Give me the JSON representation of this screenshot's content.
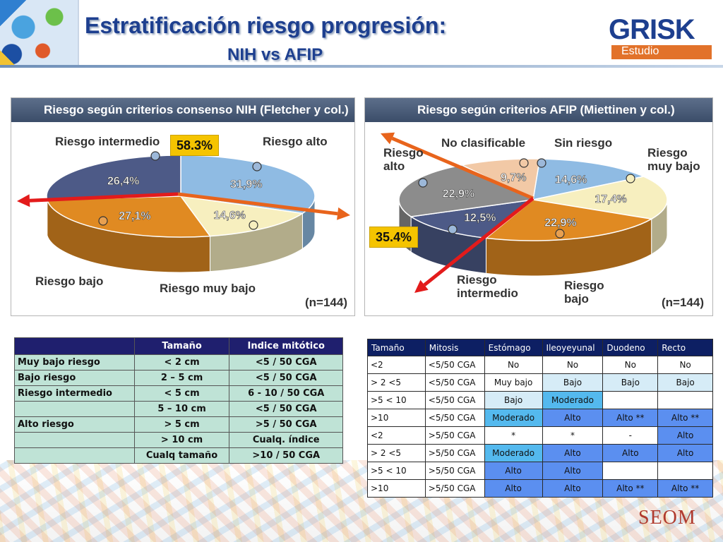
{
  "header": {
    "title": "Estratificación riesgo progresión:",
    "subtitle": "NIH vs AFIP",
    "logo": {
      "letters": "GRISK",
      "band_text": "Estudio"
    }
  },
  "footer": {
    "brand": "SEOM"
  },
  "chart_data": [
    {
      "type": "pie",
      "title": "Riesgo según criterios consenso NIH (Fletcher y col.)",
      "n_label": "(n=144)",
      "callout": "58.3%",
      "slices": [
        {
          "name": "Riesgo alto",
          "value": 31.9,
          "label": "31,9%",
          "color": "#8fbbe3"
        },
        {
          "name": "Riesgo muy bajo",
          "value": 14.6,
          "label": "14,6%",
          "color": "#f7efbf"
        },
        {
          "name": "Riesgo bajo",
          "value": 27.1,
          "label": "27,1%",
          "color": "#e08a22"
        },
        {
          "name": "Riesgo intermedio",
          "value": 26.4,
          "label": "26,4%",
          "color": "#4d5a87"
        }
      ]
    },
    {
      "type": "pie",
      "title": "Riesgo según criterios AFIP (Miettinen y col.)",
      "n_label": "(n=144)",
      "callout": "35.4%",
      "slices": [
        {
          "name": "Sin riesgo",
          "value": 14.6,
          "label": "14,6%",
          "color": "#8fbbe3"
        },
        {
          "name": "Riesgo muy bajo",
          "value": 17.4,
          "label": "17,4%",
          "color": "#f7efbf"
        },
        {
          "name": "Riesgo bajo",
          "value": 22.9,
          "label": "22,9%",
          "color": "#e08a22"
        },
        {
          "name": "Riesgo intermedio",
          "value": 12.5,
          "label": "12,5%",
          "color": "#4d5a87"
        },
        {
          "name": "Riesgo alto",
          "value": 22.9,
          "label": "22,9%",
          "color": "#8c8c8c"
        },
        {
          "name": "No clasificable",
          "value": 9.7,
          "label": "9,7%",
          "color": "#f2c9a6"
        }
      ]
    }
  ],
  "nih_chart": {
    "labels": {
      "intermedio": "Riesgo intermedio",
      "alto": "Riesgo alto",
      "bajo": "Riesgo bajo",
      "muy_bajo": "Riesgo muy bajo"
    }
  },
  "afip_chart": {
    "labels": {
      "alto": "Riesgo\nalto",
      "no_clasificable": "No clasificable",
      "sin_riesgo": "Sin riesgo",
      "muy_bajo": "Riesgo\nmuy bajo",
      "intermedio": "Riesgo\nintermedio",
      "bajo": "Riesgo\nbajo"
    }
  },
  "nih_table": {
    "headers": [
      "",
      "Tamaño",
      "Indice mitótico"
    ],
    "rows": [
      [
        "Muy bajo riesgo",
        "< 2 cm",
        "<5 / 50 CGA"
      ],
      [
        "Bajo riesgo",
        "2 – 5 cm",
        "<5 / 50 CGA"
      ],
      [
        "Riesgo intermedio",
        "< 5 cm",
        "6 - 10 / 50 CGA"
      ],
      [
        "",
        "5 – 10 cm",
        "<5 / 50 CGA"
      ],
      [
        "Alto riesgo",
        "> 5 cm",
        ">5 / 50 CGA"
      ],
      [
        "",
        "> 10 cm",
        "Cualq. índice"
      ],
      [
        "",
        "Cualq tamaño",
        ">10 / 50 CGA"
      ]
    ]
  },
  "afip_table": {
    "headers": [
      "Tamaño",
      "Mitosis",
      "Estómago",
      "Ileoyeyunal",
      "Duodeno",
      "Recto"
    ],
    "rows": [
      [
        "<2",
        "<5/50 CGA",
        "No",
        "No",
        "No",
        "No"
      ],
      [
        "> 2 <5",
        "<5/50 CGA",
        "Muy bajo",
        "Bajo",
        "Bajo",
        "Bajo"
      ],
      [
        ">5 < 10",
        "<5/50 CGA",
        "Bajo",
        "Moderado",
        "",
        ""
      ],
      [
        ">10",
        "<5/50 CGA",
        "Moderado",
        "Alto",
        "Alto **",
        "Alto **"
      ],
      [
        "<2",
        ">5/50 CGA",
        "*",
        "*",
        "-",
        "Alto"
      ],
      [
        "> 2 <5",
        ">5/50 CGA",
        "Moderado",
        "Alto",
        "Alto",
        "Alto"
      ],
      [
        ">5 < 10",
        ">5/50 CGA",
        "Alto",
        "Alto",
        "",
        ""
      ],
      [
        ">10",
        ">5/50 CGA",
        "Alto",
        "Alto",
        "Alto **",
        "Alto **"
      ]
    ],
    "category_colors": {
      "No": "#ffffff",
      "Muy bajo": "#ffffff",
      "Bajo": "#d6ecf7",
      "Moderado": "#54b9ee",
      "Alto": "#5b8ff0",
      "Alto **": "#5b8ff0",
      "*": "#ffffff",
      "-": "#ffffff",
      "": "#ffffff"
    }
  }
}
